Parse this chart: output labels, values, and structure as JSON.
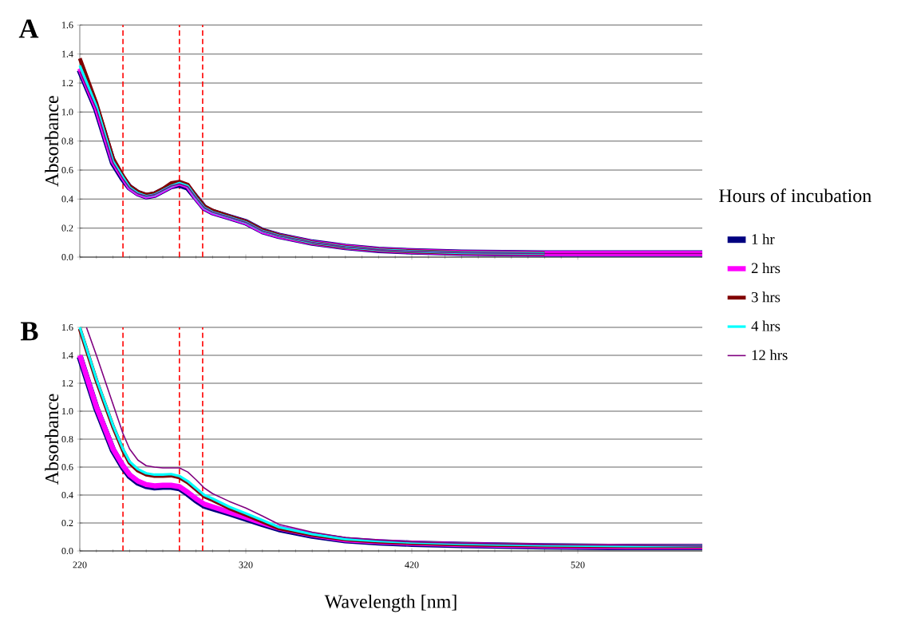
{
  "chart_data": [
    {
      "type": "line",
      "title": "A",
      "ylabel": "Absorbance",
      "xlim": [
        220,
        595
      ],
      "ylim": [
        0,
        1.6
      ],
      "xticks": [
        220,
        320,
        420,
        520
      ],
      "yticks": [
        {
          "value": 0,
          "label": "0.0"
        },
        {
          "value": 0.2,
          "label": "0.2"
        },
        {
          "value": 0.4,
          "label": "0.4"
        },
        {
          "value": 0.6,
          "label": "0.6"
        },
        {
          "value": 0.8,
          "label": "0.8"
        },
        {
          "value": 1.0,
          "label": "1.0"
        },
        {
          "value": 1.2,
          "label": "1.2"
        },
        {
          "value": 1.4,
          "label": "1.4"
        },
        {
          "value": 1.6,
          "label": "1.6"
        }
      ],
      "tick_labels": "y",
      "grid": "y",
      "legend": "right",
      "legend_title": "Hours of incubation",
      "marker": "none",
      "x": [
        220,
        230,
        240,
        246,
        250,
        255,
        260,
        265,
        270,
        275,
        280,
        285,
        290,
        295,
        300,
        310,
        320,
        330,
        340,
        360,
        380,
        400,
        420,
        450,
        500,
        550,
        595
      ],
      "series": [
        {
          "name": "1 hr",
          "color": "#000080",
          "values": [
            1.29,
            1.02,
            0.65,
            0.54,
            0.48,
            0.44,
            0.42,
            0.43,
            0.46,
            0.49,
            0.5,
            0.48,
            0.41,
            0.34,
            0.31,
            0.275,
            0.24,
            0.18,
            0.147,
            0.1,
            0.07,
            0.05,
            0.04,
            0.03,
            0.025,
            0.025,
            0.025
          ]
        },
        {
          "name": "2 hrs",
          "color": "#ff00ff",
          "values": [
            1.3,
            1.03,
            0.66,
            0.55,
            0.48,
            0.44,
            0.42,
            0.43,
            0.46,
            0.49,
            0.51,
            0.49,
            0.41,
            0.34,
            0.31,
            0.275,
            0.24,
            0.18,
            0.147,
            0.1,
            0.07,
            0.05,
            0.04,
            0.03,
            0.025,
            0.025,
            0.025
          ]
        },
        {
          "name": "3 hrs",
          "color": "#800000",
          "values": [
            1.37,
            1.06,
            0.68,
            0.56,
            0.49,
            0.45,
            0.43,
            0.44,
            0.47,
            0.51,
            0.52,
            0.5,
            0.42,
            0.35,
            0.32,
            0.28,
            0.245,
            0.185,
            0.15,
            0.1,
            0.07,
            0.05,
            0.04,
            0.03,
            0.025,
            null,
            null
          ]
        },
        {
          "name": "4 hrs",
          "color": "#00ffff",
          "values": [
            1.32,
            1.04,
            0.66,
            0.55,
            0.48,
            0.44,
            0.42,
            0.43,
            0.46,
            0.49,
            0.51,
            0.49,
            0.41,
            0.34,
            0.31,
            0.275,
            0.24,
            0.18,
            0.147,
            0.1,
            0.07,
            0.05,
            0.04,
            0.03,
            0.025,
            null,
            null
          ]
        },
        {
          "name": "12 hrs",
          "color": "#800080",
          "values": [
            1.28,
            1.02,
            0.65,
            0.54,
            0.477,
            0.437,
            0.42,
            0.43,
            0.46,
            0.49,
            0.505,
            0.486,
            0.41,
            0.34,
            0.31,
            0.275,
            0.24,
            0.18,
            0.147,
            0.1,
            0.07,
            0.05,
            0.04,
            0.03,
            0.025,
            0.025,
            0.025
          ]
        }
      ],
      "ref_lines": [
        {
          "axis": "x",
          "value": 246,
          "color": "#ff0000",
          "line_style": "dashed"
        },
        {
          "axis": "x",
          "value": 280,
          "color": "#ff0000",
          "line_style": "dashed"
        },
        {
          "axis": "x",
          "value": 294,
          "color": "#ff0000",
          "line_style": "dashed"
        }
      ]
    },
    {
      "type": "line",
      "title": "B",
      "ylabel": "Absorbance",
      "xlabel": "Wavelength [nm]",
      "xlim": [
        220,
        595
      ],
      "ylim": [
        0,
        1.6
      ],
      "xticks": [
        220,
        320,
        420,
        520
      ],
      "yticks": [
        {
          "value": 0,
          "label": "0.0"
        },
        {
          "value": 0.2,
          "label": "0.2"
        },
        {
          "value": 0.4,
          "label": "0.4"
        },
        {
          "value": 0.6,
          "label": "0.6"
        },
        {
          "value": 0.8,
          "label": "0.8"
        },
        {
          "value": 1.0,
          "label": "1.0"
        },
        {
          "value": 1.2,
          "label": "1.2"
        },
        {
          "value": 1.4,
          "label": "1.4"
        },
        {
          "value": 1.6,
          "label": "1.6"
        }
      ],
      "grid": "y",
      "marker": "none",
      "x": [
        220,
        230,
        240,
        246,
        250,
        255,
        260,
        265,
        270,
        275,
        280,
        285,
        290,
        295,
        300,
        310,
        320,
        330,
        340,
        360,
        380,
        400,
        420,
        450,
        500,
        550,
        595
      ],
      "series": [
        {
          "color": "#000080",
          "values": [
            1.39,
            1.02,
            0.72,
            0.6,
            0.536,
            0.49,
            0.465,
            0.456,
            0.46,
            0.46,
            0.45,
            0.41,
            0.364,
            0.325,
            0.306,
            0.27,
            0.232,
            0.193,
            0.157,
            0.11,
            0.077,
            0.062,
            0.052,
            0.043,
            0.033,
            0.028,
            0.028
          ]
        },
        {
          "color": "#ff00ff",
          "values": [
            1.4,
            1.03,
            0.73,
            0.61,
            0.546,
            0.5,
            0.475,
            0.466,
            0.47,
            0.47,
            0.46,
            0.42,
            0.374,
            0.335,
            0.316,
            0.278,
            0.24,
            0.2,
            0.163,
            0.115,
            0.08,
            0.065,
            0.055,
            0.045,
            0.035,
            0.03,
            0.03
          ]
        },
        {
          "color": "#800000",
          "values": [
            1.59,
            1.22,
            0.89,
            0.72,
            0.63,
            0.575,
            0.546,
            0.536,
            0.536,
            0.54,
            0.526,
            0.49,
            0.44,
            0.39,
            0.364,
            0.306,
            0.258,
            0.21,
            0.162,
            0.115,
            0.082,
            0.067,
            0.057,
            0.047,
            0.038,
            0.033,
            0.033
          ]
        },
        {
          "color": "#00ffff",
          "values": [
            1.6,
            1.23,
            0.9,
            0.73,
            0.64,
            0.585,
            0.556,
            0.546,
            0.546,
            0.55,
            0.536,
            0.5,
            0.45,
            0.4,
            0.374,
            0.316,
            0.268,
            0.22,
            0.17,
            0.12,
            0.085,
            0.07,
            0.06,
            0.05,
            0.04,
            0.035,
            0.035
          ]
        },
        {
          "color": "#800080",
          "x": [
            224,
            230,
            240,
            246,
            250,
            255,
            260,
            265,
            270,
            275,
            280,
            285,
            290,
            295,
            300,
            310,
            320,
            330,
            340,
            360,
            380,
            400,
            420,
            450,
            500,
            550,
            595
          ],
          "values": [
            1.6,
            1.4,
            1.05,
            0.84,
            0.73,
            0.65,
            0.61,
            0.6,
            0.594,
            0.594,
            0.594,
            0.565,
            0.51,
            0.45,
            0.41,
            0.355,
            0.307,
            0.25,
            0.19,
            0.134,
            0.096,
            0.077,
            0.065,
            0.055,
            0.045,
            0.04,
            0.035
          ]
        }
      ],
      "ref_lines": [
        {
          "axis": "x",
          "value": 246,
          "color": "#ff0000",
          "line_style": "dashed"
        },
        {
          "axis": "x",
          "value": 280,
          "color": "#ff0000",
          "line_style": "dashed"
        },
        {
          "axis": "x",
          "value": 294,
          "color": "#ff0000",
          "line_style": "dashed"
        }
      ]
    }
  ]
}
